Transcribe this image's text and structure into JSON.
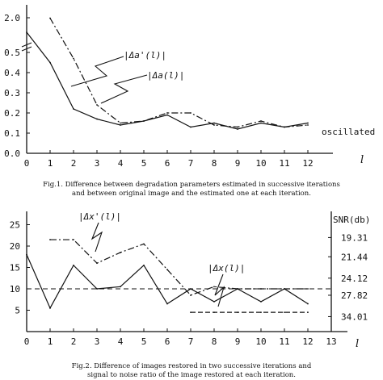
{
  "chart_data": [
    {
      "type": "line",
      "x": [
        0,
        1,
        2,
        3,
        4,
        5,
        6,
        7,
        8,
        9,
        10,
        11,
        12
      ],
      "xlabel": "l",
      "x_ticks": [
        "0",
        "1",
        "2",
        "3",
        "4",
        "5",
        "6",
        "7",
        "8",
        "9",
        "10",
        "11",
        "12"
      ],
      "y_ticks": [
        "0.0",
        "0.1",
        "0.2",
        "0.3",
        "0.4",
        "0.5",
        "2.0"
      ],
      "ylim": [
        0,
        0.5
      ],
      "axis_break": "between 0.5 and 2.0",
      "series": [
        {
          "name": "|Δa'(l)|",
          "x": [
            1,
            2,
            3,
            4,
            5,
            6,
            7,
            8,
            9,
            10,
            11,
            12
          ],
          "values": [
            0.67,
            0.47,
            0.24,
            0.15,
            0.16,
            0.2,
            0.2,
            0.14,
            0.13,
            0.16,
            0.13,
            0.14
          ]
        },
        {
          "name": "|Δa(l)|",
          "x": [
            0,
            1,
            2,
            3,
            4,
            5,
            6,
            7,
            8,
            9,
            10,
            11,
            12
          ],
          "values": [
            0.6,
            0.45,
            0.22,
            0.17,
            0.14,
            0.16,
            0.19,
            0.13,
            0.15,
            0.12,
            0.15,
            0.13,
            0.15
          ]
        }
      ],
      "annotations": [
        "|Δa'(l)|",
        "|Δa(l)|",
        "oscillated"
      ],
      "caption": [
        "Fig.1. Difference between degradation parameters estimated in successive iterations",
        "and between original image and the estimated one at each iteration."
      ]
    },
    {
      "type": "line",
      "x": [
        0,
        1,
        2,
        3,
        4,
        5,
        6,
        7,
        8,
        9,
        10,
        11,
        12
      ],
      "xlabel": "l",
      "x_ticks": [
        "0",
        "1",
        "2",
        "3",
        "4",
        "5",
        "6",
        "7",
        "8",
        "9",
        "10",
        "11",
        "12",
        "13"
      ],
      "y_ticks": [
        "5",
        "10",
        "15",
        "20",
        "25"
      ],
      "ylim": [
        0,
        28
      ],
      "right_axis_label": "SNR(db)",
      "right_ticks": [
        "19.31",
        "21.44",
        "24.12",
        "27.82",
        "34.01"
      ],
      "reference_line_y": 10,
      "series": [
        {
          "name": "|Δx'(l)|",
          "x": [
            1,
            2,
            3,
            4,
            5,
            6,
            7,
            8,
            9,
            10,
            11,
            12
          ],
          "values": [
            21.5,
            21.5,
            16,
            18.5,
            20.5,
            14.5,
            8.5,
            10.5,
            10,
            10,
            10,
            10
          ]
        },
        {
          "name": "|Δx(l)|",
          "x": [
            0,
            1,
            2,
            3,
            4,
            5,
            6,
            7,
            8,
            9,
            10,
            11,
            12
          ],
          "values": [
            18,
            5.5,
            15.5,
            10,
            10.5,
            15.5,
            6.5,
            10,
            7,
            10,
            7,
            10,
            6.5
          ]
        },
        {
          "name": "SNR",
          "x": [
            7,
            8,
            9,
            10,
            11,
            12
          ],
          "values": [
            4.5,
            4.5,
            4.5,
            4.5,
            4.5,
            4.5
          ]
        }
      ],
      "annotations": [
        "|Δx'(l)|",
        "|Δx(l)|"
      ],
      "caption": [
        "Fig.2. Difference of images restored in two successive iterations and",
        "signal to noise ratio of the image restored at each iteration."
      ]
    }
  ]
}
